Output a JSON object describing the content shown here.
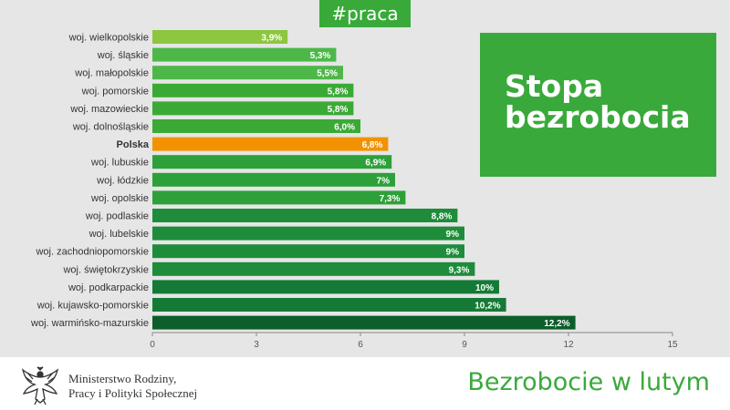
{
  "header": {
    "tag": "#praca"
  },
  "title_box": {
    "line1": "Stopa",
    "line2": "bezrobocia"
  },
  "footer": {
    "ministry_line1": "Ministerstwo Rodziny,",
    "ministry_line2": "Pracy i Polityki Społecznej",
    "subtitle": "Bezrobocie w lutym"
  },
  "chart_data": {
    "type": "bar",
    "orientation": "horizontal",
    "categories": [
      "woj. wielkopolskie",
      "woj. śląskie",
      "woj. małopolskie",
      "woj. pomorskie",
      "woj. mazowieckie",
      "woj. dolnośląskie",
      "Polska",
      "woj. lubuskie",
      "woj. łódzkie",
      "woj. opolskie",
      "woj. podlaskie",
      "woj. lubelskie",
      "woj. zachodniopomorskie",
      "woj. świętokrzyskie",
      "woj. podkarpackie",
      "woj. kujawsko-pomorskie",
      "woj. warmińsko-mazurskie"
    ],
    "values": [
      3.9,
      5.3,
      5.5,
      5.8,
      5.8,
      6.0,
      6.8,
      6.9,
      7,
      7.3,
      8.8,
      9,
      9,
      9.3,
      10,
      10.2,
      12.2
    ],
    "value_labels": [
      "3,9%",
      "5,3%",
      "5,5%",
      "5,8%",
      "5,8%",
      "6,0%",
      "6,8%",
      "6,9%",
      "7%",
      "7,3%",
      "8,8%",
      "9%",
      "9%",
      "9,3%",
      "10%",
      "10,2%",
      "12,2%"
    ],
    "colors": [
      "#8dc63f",
      "#4db848",
      "#4db848",
      "#3aaa35",
      "#3aaa35",
      "#3aaa35",
      "#f39200",
      "#2ea03a",
      "#2ea03a",
      "#2ea03a",
      "#1e8c3a",
      "#1e8c3a",
      "#1e8c3a",
      "#1e8c3a",
      "#157a35",
      "#157a35",
      "#0d5e2a"
    ],
    "bold_categories": [
      "Polska"
    ],
    "xlim": [
      0,
      15
    ],
    "xticks": [
      0,
      3,
      6,
      9,
      12,
      15
    ],
    "grid": false
  }
}
